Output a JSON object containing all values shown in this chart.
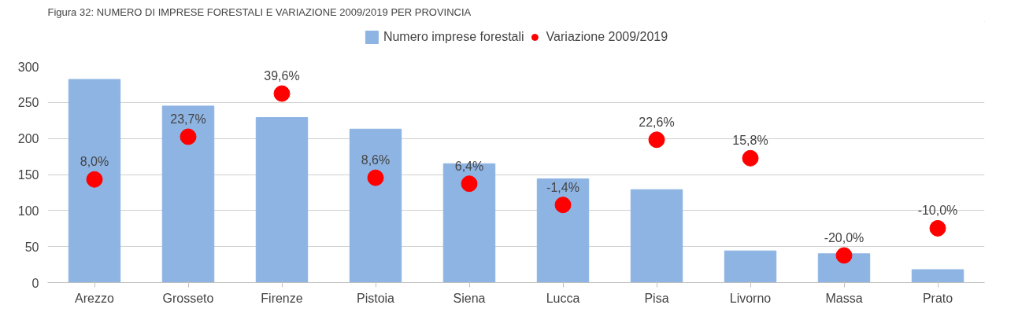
{
  "chart_data": {
    "type": "bar",
    "title": "Figura 32: NUMERO DI IMPRESE FORESTALI E VARIAZIONE 2009/2019 PER PROVINCIA",
    "categories": [
      "Arezzo",
      "Grosseto",
      "Firenze",
      "Pistoia",
      "Siena",
      "Lucca",
      "Pisa",
      "Livorno",
      "Massa",
      "Prato"
    ],
    "series": [
      {
        "name": "Numero imprese forestali",
        "color": "#8eb4e3",
        "values": [
          282,
          245,
          229,
          213,
          165,
          144,
          129,
          44,
          40,
          18
        ]
      },
      {
        "name": "Variazione 2009/2019",
        "type": "scatter",
        "axis": "y2",
        "color": "#ff0000",
        "marker": "circle",
        "values": [
          8.0,
          23.7,
          39.6,
          8.6,
          6.4,
          -1.4,
          22.6,
          15.8,
          -20.0,
          -10.0
        ],
        "value_labels": [
          "8,0%",
          "23,7%",
          "39,6%",
          "8,6%",
          "6,4%",
          "-1,4%",
          "22,6%",
          "15,8%",
          "-20,0%",
          "-10,0%"
        ]
      }
    ],
    "ylim": [
      0,
      300
    ],
    "yticks": [
      0,
      50,
      100,
      150,
      200,
      250,
      300
    ],
    "grid": "y",
    "legend": "top"
  }
}
